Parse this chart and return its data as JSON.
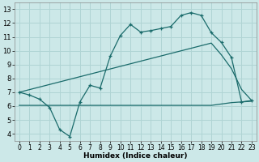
{
  "xlabel": "Humidex (Indice chaleur)",
  "xlim": [
    -0.5,
    23.5
  ],
  "ylim": [
    3.5,
    13.5
  ],
  "yticks": [
    4,
    5,
    6,
    7,
    8,
    9,
    10,
    11,
    12,
    13
  ],
  "xticks": [
    0,
    1,
    2,
    3,
    4,
    5,
    6,
    7,
    8,
    9,
    10,
    11,
    12,
    13,
    14,
    15,
    16,
    17,
    18,
    19,
    20,
    21,
    22,
    23
  ],
  "bg_color": "#cce8e8",
  "grid_color": "#b0d4d4",
  "line_color": "#1a6b6b",
  "line1_x": [
    0,
    1,
    2,
    3,
    4,
    5,
    6,
    7,
    8,
    9,
    10,
    11,
    12,
    13,
    14,
    15,
    16,
    17,
    18,
    19,
    20,
    21,
    22,
    23
  ],
  "line1_y": [
    7.0,
    6.8,
    6.5,
    5.9,
    4.3,
    3.8,
    6.3,
    7.5,
    7.3,
    9.6,
    11.1,
    11.9,
    11.35,
    11.45,
    11.6,
    11.75,
    12.55,
    12.75,
    12.55,
    11.3,
    10.6,
    9.5,
    6.3,
    6.4
  ],
  "line2_x": [
    0,
    1,
    2,
    3,
    4,
    5,
    6,
    7,
    8,
    9,
    10,
    11,
    12,
    13,
    14,
    15,
    16,
    17,
    18,
    19,
    20,
    21,
    22,
    23
  ],
  "line2_y": [
    6.05,
    6.05,
    6.05,
    6.05,
    6.05,
    6.05,
    6.05,
    6.05,
    6.05,
    6.05,
    6.05,
    6.05,
    6.05,
    6.05,
    6.05,
    6.05,
    6.05,
    6.05,
    6.05,
    6.05,
    6.15,
    6.25,
    6.3,
    6.35
  ],
  "line3_x": [
    0,
    19,
    20,
    21,
    22,
    23
  ],
  "line3_y": [
    7.0,
    10.55,
    9.7,
    8.7,
    7.2,
    6.4
  ]
}
